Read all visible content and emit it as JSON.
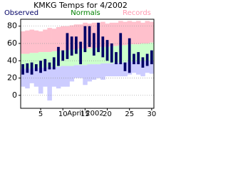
{
  "chart_data": {
    "type": "range_bar",
    "title": "KMKG Temps for 4/2002",
    "x_label": "April 2002",
    "xlim": [
      0.5,
      30.5
    ],
    "xticks": [
      5,
      10,
      15,
      20,
      25,
      30
    ],
    "ylim": [
      -15,
      88
    ],
    "yticks": [
      0,
      20,
      40,
      60,
      80
    ],
    "grid": true,
    "series": [
      {
        "name": "Records",
        "color": "#ffc0cc",
        "low_color": "#ccccff",
        "high": [
          74,
          75,
          76,
          75,
          74,
          76,
          78,
          77,
          79,
          80,
          80,
          81,
          82,
          82,
          84,
          83,
          84,
          84,
          85,
          83,
          84,
          84,
          86,
          85,
          86,
          85,
          86,
          84,
          86,
          85
        ],
        "low": [
          10,
          8,
          14,
          10,
          2,
          10,
          -6,
          10,
          8,
          10,
          10,
          16,
          20,
          20,
          12,
          16,
          18,
          20,
          18,
          22,
          22,
          22,
          22,
          22,
          24,
          26,
          24,
          22,
          26,
          25
        ]
      },
      {
        "name": "Normals",
        "color": "#ccffcc",
        "high": [
          48,
          48,
          49,
          49,
          50,
          50,
          50,
          51,
          51,
          52,
          52,
          53,
          53,
          54,
          54,
          54,
          55,
          55,
          56,
          56,
          57,
          57,
          58,
          58,
          59,
          59,
          59,
          60,
          60,
          61
        ],
        "low": [
          31,
          31,
          31,
          32,
          32,
          32,
          33,
          33,
          33,
          34,
          34,
          34,
          35,
          35,
          35,
          36,
          36,
          36,
          37,
          37,
          37,
          38,
          38,
          38,
          39,
          39,
          39,
          40,
          40,
          40
        ]
      },
      {
        "name": "Observed",
        "color": "#000066",
        "high": [
          36,
          37,
          38,
          36,
          40,
          42,
          38,
          44,
          56,
          52,
          72,
          68,
          68,
          62,
          80,
          80,
          72,
          84,
          68,
          64,
          60,
          50,
          72,
          38,
          66,
          48,
          50,
          44,
          48,
          52
        ],
        "low": [
          24,
          26,
          24,
          28,
          26,
          28,
          30,
          30,
          34,
          40,
          42,
          46,
          48,
          36,
          50,
          56,
          46,
          50,
          44,
          40,
          38,
          36,
          36,
          28,
          26,
          36,
          36,
          32,
          34,
          36
        ]
      }
    ]
  }
}
